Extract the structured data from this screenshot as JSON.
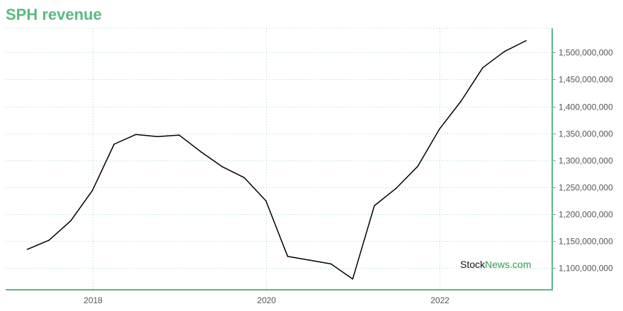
{
  "title": "SPH revenue",
  "colors": {
    "title": "#5ab982",
    "axis": "#5ab982",
    "grid": "#9fd8c5",
    "line": "#000000",
    "tick_text": "#555555",
    "watermark_dark": "#111111",
    "watermark_green": "#2e9e4e"
  },
  "watermark": {
    "part1": "Stock",
    "part2": "News",
    "part3": ".com"
  },
  "chart_data": {
    "type": "line",
    "title": "SPH revenue",
    "xlabel": "",
    "ylabel": "",
    "x_ticks": [
      "2018",
      "2020",
      "2022"
    ],
    "y_ticks": [
      "1,100,000,000",
      "1,150,000,000",
      "1,200,000,000",
      "1,250,000,000",
      "1,300,000,000",
      "1,350,000,000",
      "1,400,000,000",
      "1,450,000,000",
      "1,500,000,000"
    ],
    "x_tick_values": [
      2018.0,
      2020.0,
      2022.0
    ],
    "y_tick_values": [
      1100000000,
      1150000000,
      1200000000,
      1250000000,
      1300000000,
      1350000000,
      1400000000,
      1450000000,
      1500000000
    ],
    "xlim": [
      2017.0,
      2023.3
    ],
    "ylim": [
      1060000000,
      1545000000
    ],
    "grid": true,
    "y_axis_position": "right",
    "series": [
      {
        "x": [
          2017.25,
          2017.5,
          2017.75,
          2018.0,
          2018.25,
          2018.5,
          2018.75,
          2019.0,
          2019.25,
          2019.5,
          2019.75,
          2020.0,
          2020.25,
          2020.5,
          2020.75,
          2021.0,
          2021.25,
          2021.5,
          2021.75,
          2022.0,
          2022.25,
          2022.5,
          2022.75,
          2023.0
        ],
        "values": [
          1135000000,
          1152000000,
          1188000000,
          1244000000,
          1330000000,
          1348000000,
          1344000000,
          1347000000,
          1316000000,
          1288000000,
          1268000000,
          1225000000,
          1122000000,
          1115000000,
          1108000000,
          1080000000,
          1216000000,
          1248000000,
          1289000000,
          1358000000,
          1410000000,
          1472000000,
          1502000000,
          1522000000
        ]
      }
    ]
  }
}
